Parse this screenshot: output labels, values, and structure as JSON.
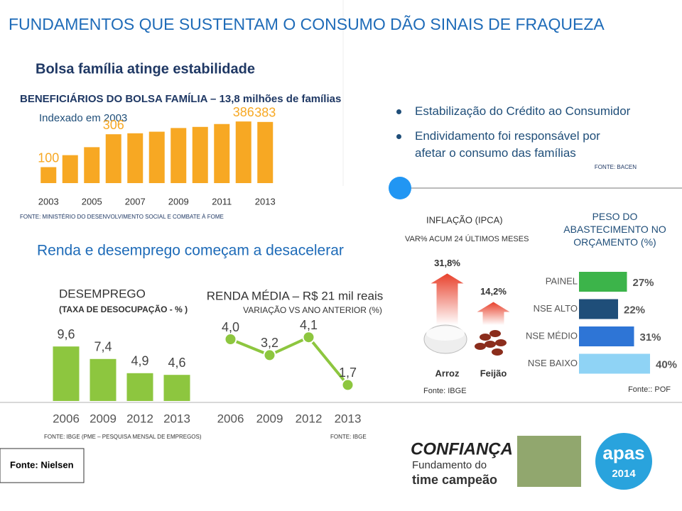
{
  "title": "FUNDAMENTOS QUE SUSTENTAM O CONSUMO DÃO SINAIS DE FRAQUEZA",
  "sections": {
    "bolsa": "Bolsa família atinge estabilidade",
    "renda": "Renda e desemprego começam a desacelerar"
  },
  "bullets": [
    "Estabilização do Crédito ao Consumidor",
    "Endividamento foi responsável por afetar o consumo das famílias"
  ],
  "bullets_source": "FONTE: BACEN",
  "footer_source": "Fonte: Nielsen",
  "logos": {
    "confianca": [
      "CONFIANÇA",
      "Fundamento do",
      "time campeão"
    ],
    "apas": [
      "apas",
      "2014"
    ]
  },
  "chart_data": [
    {
      "type": "bar",
      "title": "BENEFICIÁRIOS DO BOLSA FAMÍLIA – 13,8 milhões de famílias",
      "subtitle": "Indexado em 2003",
      "source": "FONTE: MINISTÉRIO DO DESENVOLVIMENTO SOCIAL E COMBATE À FOME",
      "categories": [
        "2003",
        null,
        "2005",
        null,
        "2007",
        null,
        "2009",
        null,
        "2011",
        null,
        "2013"
      ],
      "values": [
        100,
        175,
        225,
        306,
        312,
        322,
        345,
        352,
        370,
        386,
        383
      ],
      "value_labels": [
        "100",
        null,
        null,
        "306",
        null,
        null,
        null,
        null,
        null,
        "386",
        "383"
      ],
      "color": "#f7a823",
      "ylim": [
        0,
        400
      ]
    },
    {
      "type": "bar",
      "title": "DESEMPREGO",
      "subtitle": "(TAXA DE DESOCUPAÇÃO - % )",
      "source": "FONTE: IBGE (PME – PESQUISA MENSAL DE EMPREGOS)",
      "categories": [
        "2006",
        "2009",
        "2012",
        "2013"
      ],
      "values": [
        9.6,
        7.4,
        4.9,
        4.6
      ],
      "value_labels": [
        "9,6",
        "7,4",
        "4,9",
        "4,6"
      ],
      "color": "#8dc63f",
      "ylim": [
        0,
        10
      ]
    },
    {
      "type": "line",
      "title": "RENDA MÉDIA – R$ 21 mil reais",
      "subtitle": "VARIAÇÃO VS ANO ANTERIOR (%)",
      "source": "FONTE: IBGE",
      "categories": [
        "2006",
        "2009",
        "2012",
        "2013"
      ],
      "values": [
        4.0,
        3.2,
        4.1,
        1.7
      ],
      "value_labels": [
        "4,0",
        "3,2",
        "4,1",
        "1,7"
      ],
      "color": "#8dc63f",
      "ylim": [
        0,
        5
      ]
    },
    {
      "type": "bar",
      "title": "INFLAÇÃO (IPCA)",
      "subtitle": "VAR% ACUM 24 ÚLTIMOS MESES",
      "source": "Fonte: IBGE",
      "categories": [
        "Arroz",
        "Feijão"
      ],
      "values": [
        31.8,
        14.2
      ],
      "value_labels": [
        "31,8%",
        "14,2%"
      ],
      "color": "#e8412c",
      "ylim": [
        0,
        35
      ]
    },
    {
      "type": "barh",
      "title": "PESO DO ABASTECIMENTO NO ORÇAMENTO (%)",
      "source": "Fonte:: POF",
      "categories": [
        "PAINEL",
        "NSE ALTO",
        "NSE MÉDIO",
        "NSE BAIXO"
      ],
      "values": [
        27,
        22,
        31,
        40
      ],
      "value_labels": [
        "27%",
        "22%",
        "31%",
        "40%"
      ],
      "colors": [
        "#3cb44a",
        "#1f4e79",
        "#2e75d6",
        "#8fd3f5"
      ],
      "xlim": [
        0,
        40
      ]
    }
  ]
}
